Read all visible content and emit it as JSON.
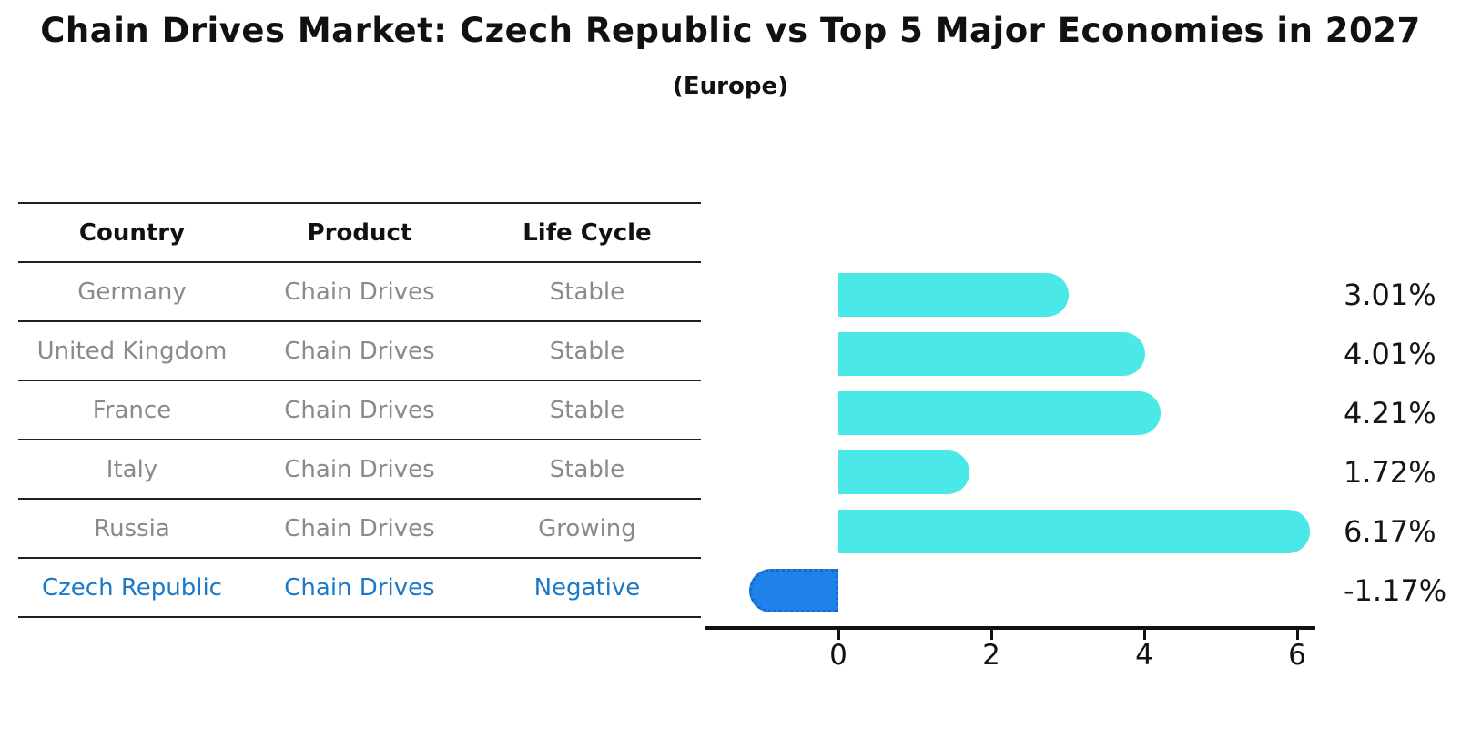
{
  "title": "Chain Drives Market: Czech Republic vs Top 5 Major Economies in 2027",
  "subtitle": "(Europe)",
  "table": {
    "headers": [
      "Country",
      "Product",
      "Life Cycle"
    ],
    "rows": [
      {
        "country": "Germany",
        "product": "Chain Drives",
        "life_cycle": "Stable",
        "highlight": false
      },
      {
        "country": "United Kingdom",
        "product": "Chain Drives",
        "life_cycle": "Stable",
        "highlight": false
      },
      {
        "country": "France",
        "product": "Chain Drives",
        "life_cycle": "Stable",
        "highlight": false
      },
      {
        "country": "Italy",
        "product": "Chain Drives",
        "life_cycle": "Stable",
        "highlight": false
      },
      {
        "country": "Russia",
        "product": "Chain Drives",
        "life_cycle": "Growing",
        "highlight": false
      },
      {
        "country": "Czech Republic",
        "product": "Chain Drives",
        "life_cycle": "Negative",
        "highlight": true
      }
    ]
  },
  "chart_data": {
    "type": "bar",
    "orientation": "horizontal",
    "title": "Chain Drives Market: Czech Republic vs Top 5 Major Economies in 2027 (Europe)",
    "categories": [
      "Germany",
      "United Kingdom",
      "France",
      "Italy",
      "Russia",
      "Czech Republic"
    ],
    "values": [
      3.01,
      4.01,
      4.21,
      1.72,
      6.17,
      -1.17
    ],
    "value_labels": [
      "3.01%",
      "4.01%",
      "4.21%",
      "1.72%",
      "6.17%",
      "-1.17%"
    ],
    "x_ticks": [
      0,
      2,
      4,
      6
    ],
    "xlim": [
      -1.75,
      6.25
    ],
    "grid": false,
    "legend": false,
    "bar_color": "#4AE8E6",
    "highlight_bar_color": "#1E82E8",
    "highlight_border_color": "#1668cf",
    "highlight_index": 5
  },
  "colors": {
    "title_text": "#111111",
    "row_text": "#8A8A8A",
    "highlight_text": "#1B79C8",
    "axis": "#111111"
  }
}
